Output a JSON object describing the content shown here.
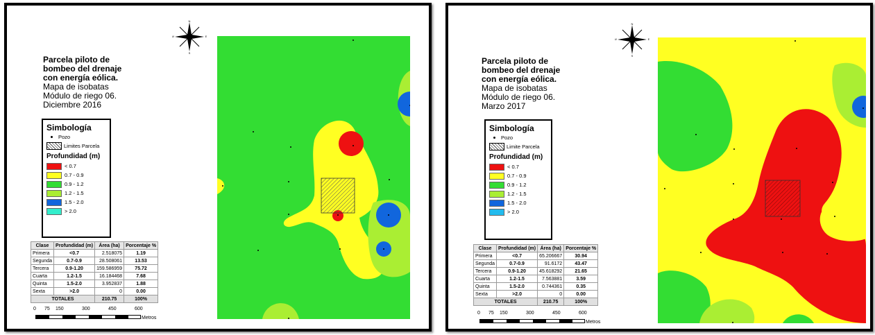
{
  "panels": [
    {
      "title_bold": [
        "Parcela piloto de",
        "bombeo del drenaje",
        "con energía eólica."
      ],
      "title_normal": [
        "Mapa de isobatas",
        "Módulo de riego 06.",
        "Diciembre 2016"
      ],
      "legend": {
        "title": "Simbología",
        "well": "Pozo",
        "boundary": "Limites Parcela",
        "depth_title": "Profundidad (m)",
        "classes": [
          {
            "label": "< 0.7",
            "color": "#ee1111"
          },
          {
            "label": "0.7 - 0.9",
            "color": "#ffff22"
          },
          {
            "label": "0.9 - 1.2",
            "color": "#33dd33"
          },
          {
            "label": "1.2 - 1.5",
            "color": "#aaee33"
          },
          {
            "label": "1.5 - 2.0",
            "color": "#1166dd"
          },
          {
            "label": "> 2.0",
            "color": "#33eecc"
          }
        ]
      },
      "table": {
        "headers": [
          "Clase",
          "Profundidad (m)",
          "Área (ha)",
          "Porcentaje %"
        ],
        "rows": [
          [
            "Primera",
            "<0.7",
            "2.518075",
            "1.19"
          ],
          [
            "Segunda",
            "0.7-0.9",
            "28.508061",
            "13.53"
          ],
          [
            "Tercera",
            "0.9-1.20",
            "159.586959",
            "75.72"
          ],
          [
            "Cuarta",
            "1.2-1.5",
            "16.184468",
            "7.68"
          ],
          [
            "Quinta",
            "1.5-2.0",
            "3.952837",
            "1.88"
          ],
          [
            "Sexta",
            ">2.0",
            "0",
            "0.00"
          ]
        ],
        "total_label": "TOTALES",
        "total_area": "210.75",
        "total_pct": "100%"
      },
      "scale": {
        "ticks": [
          "0",
          "75",
          "150",
          "300",
          "450",
          "600"
        ],
        "unit": "Metros"
      },
      "compass": {
        "n": "N",
        "s": "S",
        "e": "E",
        "w": "W"
      }
    },
    {
      "title_bold": [
        "Parcela piloto de",
        "bombeo del drenaje",
        "con energía eólica."
      ],
      "title_normal": [
        "Mapa de isobatas",
        "Módulo de riego 06.",
        "Marzo 2017"
      ],
      "legend": {
        "title": "Simbología",
        "well": "Pozo",
        "boundary": "Limite Parcela",
        "depth_title": "Profundidad (m)",
        "classes": [
          {
            "label": "< 0.7",
            "color": "#ee1111"
          },
          {
            "label": "0.7 - 0.9",
            "color": "#ffff22"
          },
          {
            "label": "0.9 - 1.2",
            "color": "#33dd33"
          },
          {
            "label": "1.2 - 1.5",
            "color": "#aaee33"
          },
          {
            "label": "1.5 - 2.0",
            "color": "#1166dd"
          },
          {
            "label": "> 2.0",
            "color": "#22bbee"
          }
        ]
      },
      "table": {
        "headers": [
          "Clase",
          "Profundidad (m)",
          "Área (ha)",
          "Porcentaje %"
        ],
        "rows": [
          [
            "Primera",
            "<0.7",
            "65.206667",
            "30.94"
          ],
          [
            "Segunda",
            "0.7-0.9",
            "91.6172",
            "43.47"
          ],
          [
            "Tercera",
            "0.9-1.20",
            "45.618292",
            "21.65"
          ],
          [
            "Cuarta",
            "1.2-1.5",
            "7.563881",
            "3.59"
          ],
          [
            "Quinta",
            "1.5-2.0",
            "0.744361",
            "0.35"
          ],
          [
            "Sexta",
            ">2.0",
            "0",
            "0.00"
          ]
        ],
        "total_label": "TOTALES",
        "total_area": "210.75",
        "total_pct": "100%"
      },
      "scale": {
        "ticks": [
          "0",
          "75",
          "150",
          "300",
          "450",
          "600"
        ],
        "unit": "Metros"
      },
      "compass": {
        "n": "N",
        "s": "S",
        "e": "E",
        "w": "W"
      }
    }
  ]
}
